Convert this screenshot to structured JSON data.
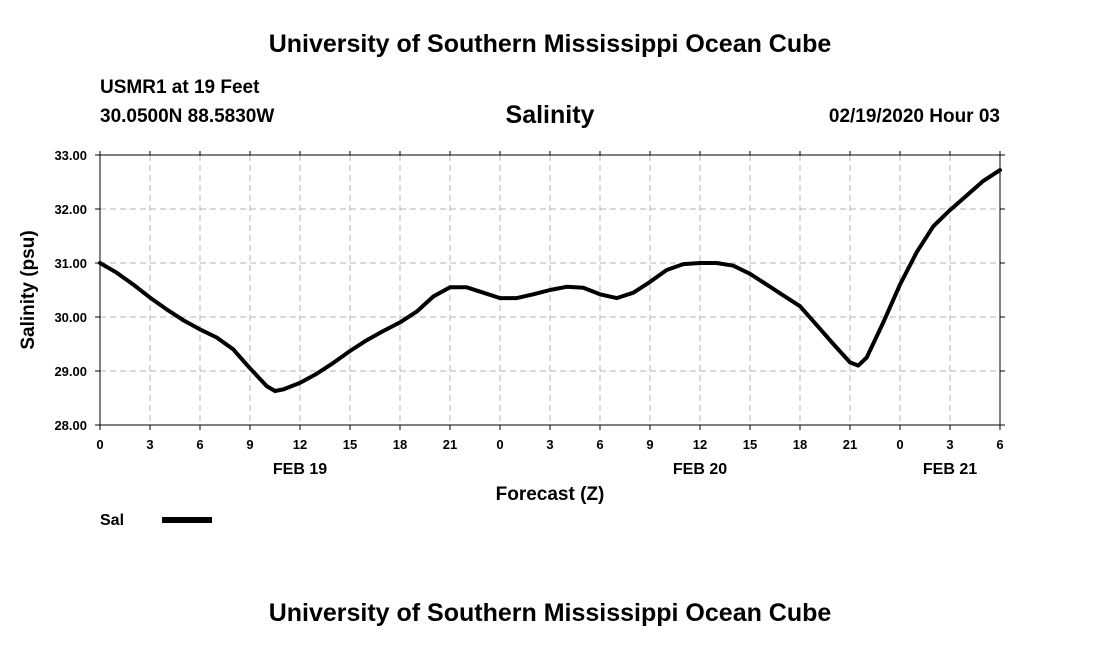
{
  "header": {
    "title": "University of Southern Mississippi Ocean Cube",
    "station": "USMR1 at 19 Feet",
    "coords": "30.0500N 88.5830W",
    "timestamp": "02/19/2020 Hour 03"
  },
  "footer": {
    "title": "University of Southern Mississippi Ocean Cube"
  },
  "chart_data": {
    "type": "line",
    "title": "Salinity",
    "xlabel": "Forecast (Z)",
    "ylabel": "Salinity (psu)",
    "ylim": [
      28,
      33
    ],
    "xlim": [
      0,
      54
    ],
    "yticks": [
      "28.00",
      "29.00",
      "30.00",
      "31.00",
      "32.00",
      "33.00"
    ],
    "xtick_labels": [
      "0",
      "3",
      "6",
      "9",
      "12",
      "15",
      "18",
      "21",
      "0",
      "3",
      "6",
      "9",
      "12",
      "15",
      "18",
      "21",
      "0",
      "3",
      "6"
    ],
    "date_labels": [
      {
        "text": "FEB 19",
        "at": 12
      },
      {
        "text": "FEB 20",
        "at": 36
      },
      {
        "text": "FEB 21",
        "at": 51
      }
    ],
    "grid": true,
    "legend": {
      "placement": "bottom-left"
    },
    "series": [
      {
        "name": "Sal",
        "color": "#000000",
        "x": [
          0,
          1,
          2,
          3,
          4,
          5,
          6,
          7,
          8,
          9,
          10,
          10.5,
          11,
          12,
          13,
          14,
          15,
          16,
          17,
          18,
          19,
          20,
          21,
          22,
          23,
          24,
          25,
          26,
          27,
          28,
          29,
          30,
          31,
          32,
          33,
          34,
          35,
          36,
          37,
          38,
          39,
          40,
          41,
          42,
          43,
          44,
          45,
          45.5,
          46,
          47,
          48,
          49,
          50,
          51,
          52,
          53,
          54
        ],
        "y": [
          31.0,
          30.82,
          30.6,
          30.36,
          30.14,
          29.94,
          29.77,
          29.62,
          29.4,
          29.05,
          28.72,
          28.63,
          28.66,
          28.78,
          28.95,
          29.15,
          29.37,
          29.57,
          29.74,
          29.9,
          30.1,
          30.38,
          30.55,
          30.55,
          30.45,
          30.35,
          30.35,
          30.42,
          30.5,
          30.56,
          30.54,
          30.42,
          30.35,
          30.45,
          30.65,
          30.87,
          30.98,
          31.0,
          31.0,
          30.95,
          30.8,
          30.6,
          30.4,
          30.2,
          29.85,
          29.5,
          29.16,
          29.1,
          29.25,
          29.9,
          30.6,
          31.2,
          31.68,
          31.98,
          32.25,
          32.52,
          32.72
        ]
      }
    ]
  }
}
